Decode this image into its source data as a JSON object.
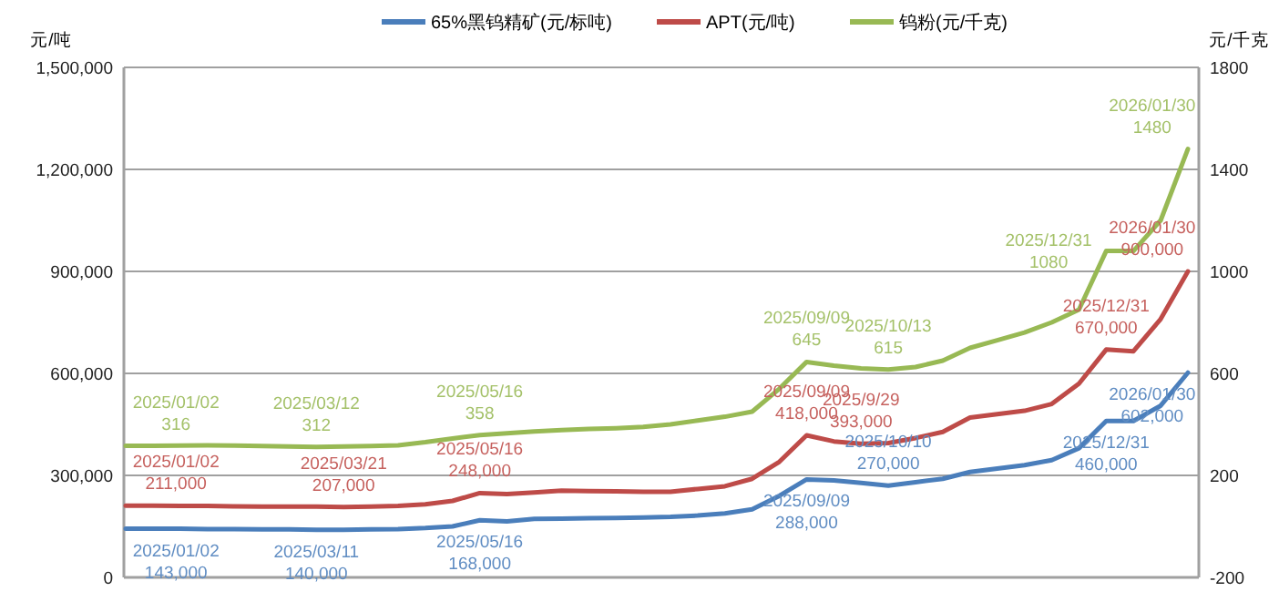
{
  "chart_data": {
    "type": "line",
    "ylabel": "元/吨",
    "y2label": "元/千克",
    "categories": [
      null,
      null,
      null,
      null,
      null,
      null,
      null,
      null,
      null,
      null,
      null,
      null,
      null,
      null,
      null,
      null,
      null,
      null,
      null,
      null,
      null,
      null,
      null,
      null,
      null,
      null,
      null,
      null,
      null,
      null,
      null,
      null,
      null,
      null,
      null,
      null,
      null,
      null,
      null,
      null
    ],
    "ylim": [
      0,
      1500000
    ],
    "yticks": [
      {
        "value": 0,
        "label": "0"
      },
      {
        "value": 300000,
        "label": "300,000"
      },
      {
        "value": 600000,
        "label": "600,000"
      },
      {
        "value": 900000,
        "label": "900,000"
      },
      {
        "value": 1200000,
        "label": "1,200,000"
      },
      {
        "value": 1500000,
        "label": "1,500,000"
      }
    ],
    "y2lim": [
      -200,
      1800
    ],
    "y2ticks": [
      -200,
      200,
      600,
      1000,
      1400,
      1800
    ],
    "grid": "y",
    "legend": "top",
    "marker": "none",
    "line_style": "solid",
    "series": [
      {
        "name": "65%黑钨精矿(元/标吨)",
        "color": "#4a7ebb",
        "values": [
          143000,
          143000,
          143000,
          142000,
          142000,
          141000,
          141000,
          140000,
          140000,
          141000,
          142000,
          145000,
          150000,
          168000,
          165000,
          172000,
          173000,
          174000,
          175000,
          176000,
          178000,
          182000,
          188000,
          200000,
          240000,
          288000,
          285000,
          278000,
          270000,
          280000,
          290000,
          310000,
          320000,
          330000,
          345000,
          380000,
          460000,
          460000,
          505000,
          602000
        ],
        "value_labels": [
          "2025/01/02\n143,000",
          null,
          null,
          null,
          null,
          null,
          null,
          "2025/03/11\n140,000",
          null,
          null,
          null,
          null,
          null,
          "2025/05/16\n168,000",
          null,
          null,
          null,
          null,
          null,
          null,
          null,
          null,
          null,
          null,
          null,
          "2025/09/09\n288,000",
          null,
          null,
          "2025/10/10\n270,000",
          null,
          null,
          null,
          null,
          null,
          null,
          null,
          "2025/12/31\n460,000",
          null,
          null,
          "2026/01/30\n602,000"
        ]
      },
      {
        "name": "APT(元/吨)",
        "color": "#be4b48",
        "values": [
          211000,
          211000,
          210000,
          210000,
          209000,
          208000,
          208000,
          208000,
          207000,
          208000,
          210000,
          215000,
          225000,
          248000,
          245000,
          250000,
          255000,
          254000,
          253000,
          252000,
          252000,
          260000,
          268000,
          290000,
          340000,
          418000,
          400000,
          393000,
          395000,
          410000,
          428000,
          470000,
          480000,
          490000,
          510000,
          570000,
          670000,
          665000,
          760000,
          900000
        ],
        "value_labels": [
          "2025/01/02\n211,000",
          null,
          null,
          null,
          null,
          null,
          null,
          null,
          "2025/03/21\n207,000",
          null,
          null,
          null,
          null,
          "2025/05/16\n248,000",
          null,
          null,
          null,
          null,
          null,
          null,
          null,
          null,
          null,
          null,
          null,
          "2025/09/09\n418,000",
          null,
          "2025/9/29\n393,000",
          null,
          null,
          null,
          null,
          null,
          null,
          null,
          null,
          "2025/12/31\n670,000",
          null,
          null,
          "2026/01/30\n900,000"
        ]
      },
      {
        "name": "钨粉(元/千克)",
        "color": "#98b954",
        "axis": "y2",
        "values": [
          316,
          316,
          317,
          318,
          317,
          315,
          313,
          312,
          313,
          315,
          318,
          330,
          345,
          358,
          365,
          372,
          378,
          382,
          385,
          390,
          400,
          415,
          430,
          450,
          540,
          645,
          630,
          620,
          615,
          625,
          650,
          700,
          730,
          760,
          800,
          850,
          1080,
          1080,
          1200,
          1480
        ],
        "value_labels": [
          "2025/01/02\n316",
          null,
          null,
          null,
          null,
          null,
          null,
          "2025/03/12\n312",
          null,
          null,
          null,
          null,
          null,
          "2025/05/16\n358",
          null,
          null,
          null,
          null,
          null,
          null,
          null,
          null,
          null,
          null,
          null,
          "2025/09/09\n645",
          null,
          null,
          "2025/10/13\n615",
          null,
          null,
          null,
          null,
          null,
          null,
          null,
          "2025/12/31\n1080",
          null,
          null,
          "2026/01/30\n1480"
        ]
      }
    ]
  }
}
